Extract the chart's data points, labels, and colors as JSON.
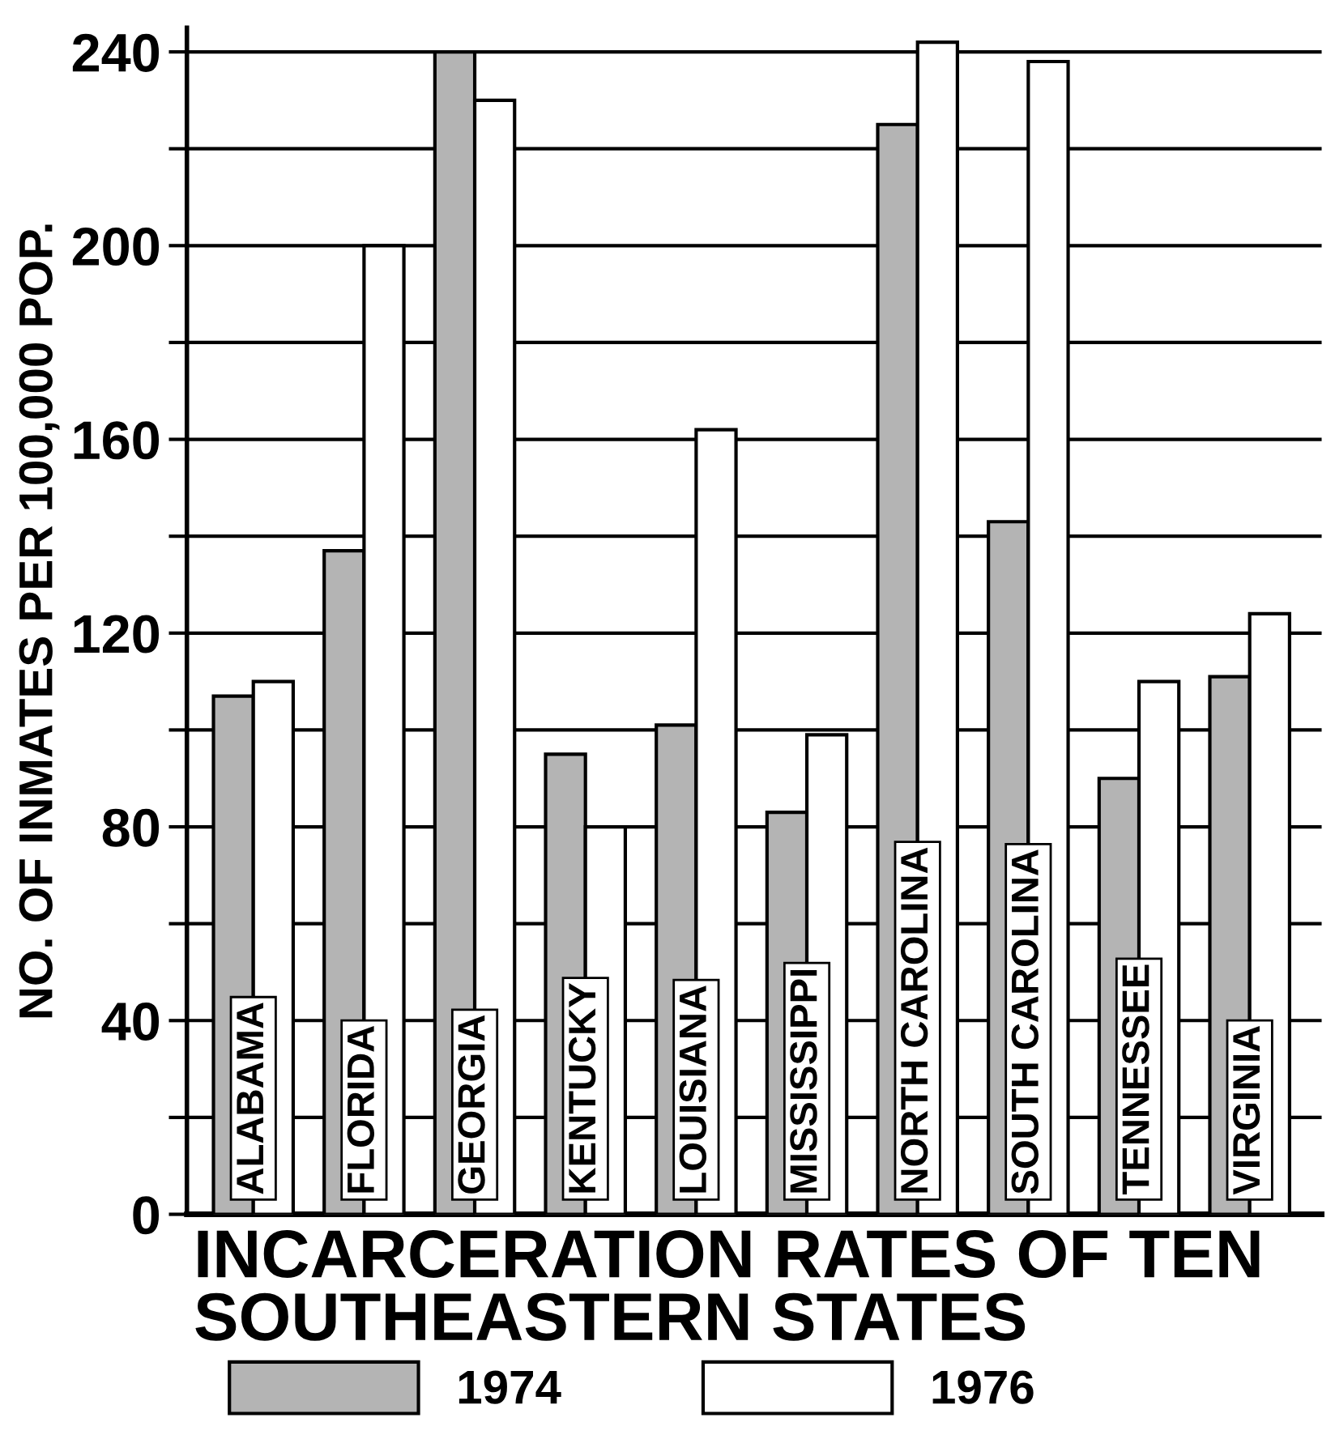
{
  "chart_data": {
    "type": "bar",
    "title": "INCARCERATION RATES OF TEN SOUTHEASTERN STATES",
    "ylabel": "NO. OF INMATES PER 100,000 POP.",
    "categories": [
      "ALABAMA",
      "FLORIDA",
      "GEORGIA",
      "KENTUCKY",
      "LOUISIANA",
      "MISSISSIPPI",
      "NORTH CAROLINA",
      "SOUTH CAROLINA",
      "TENNESSEE",
      "VIRGINIA"
    ],
    "series": [
      {
        "name": "1974",
        "color": "#b4b4b4",
        "values": [
          107,
          137,
          240,
          95,
          101,
          83,
          225,
          143,
          90,
          111
        ]
      },
      {
        "name": "1976",
        "color": "#ffffff",
        "values": [
          110,
          200,
          230,
          80,
          162,
          99,
          242,
          238,
          110,
          124
        ]
      }
    ],
    "ylim": [
      0,
      245
    ],
    "yticks": [
      0,
      {
        "value": 20,
        "label": null
      },
      40,
      {
        "value": 60,
        "label": null
      },
      80,
      {
        "value": 100,
        "label": null
      },
      120,
      {
        "value": 140,
        "label": null
      },
      160,
      {
        "value": 180,
        "label": null
      },
      200,
      {
        "value": 220,
        "label": null
      },
      240
    ],
    "grid": "y",
    "legend": "bottom"
  }
}
